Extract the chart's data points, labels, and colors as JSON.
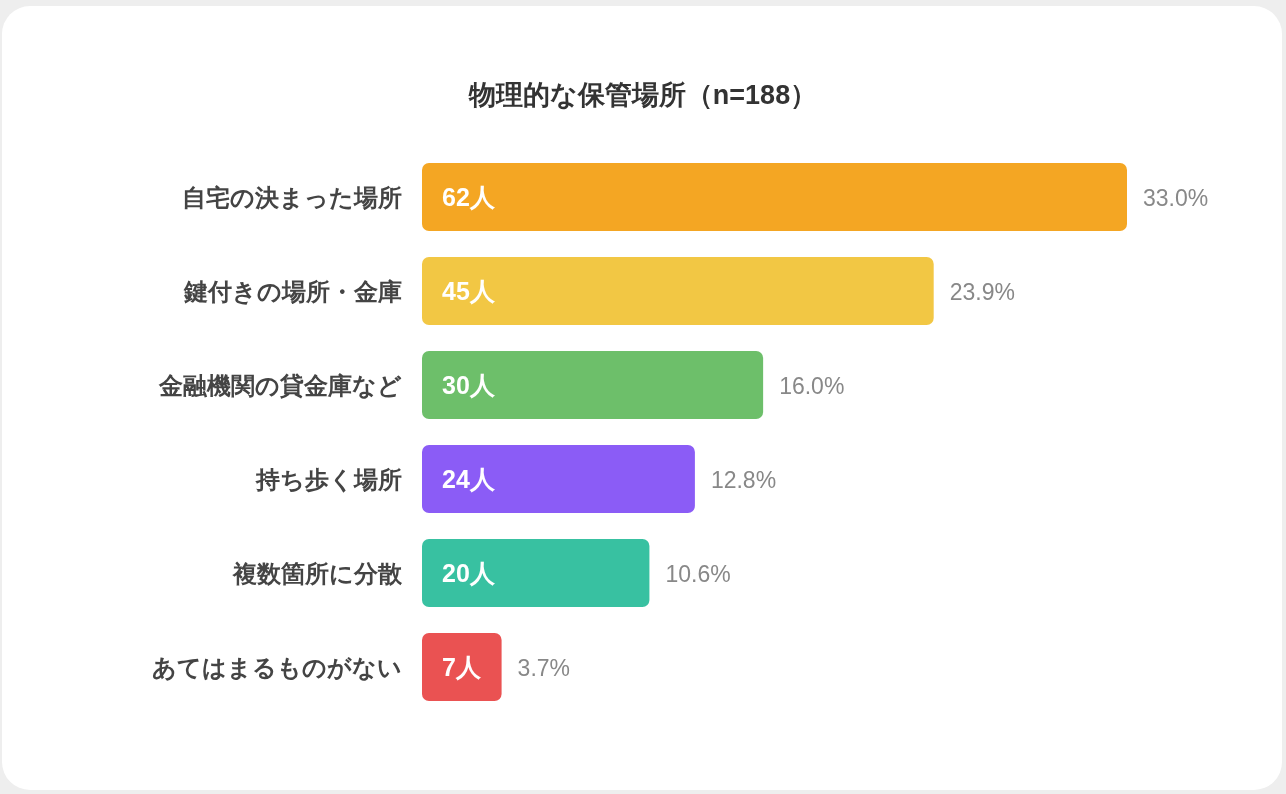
{
  "chart_data": {
    "type": "bar",
    "orientation": "horizontal",
    "title": "物理的な保管場所（n=188）",
    "categories": [
      "自宅の決まった場所",
      "鍵付きの場所・金庫",
      "金融機関の貸金庫など",
      "持ち歩く場所",
      "複数箇所に分散",
      "あてはまるものがない"
    ],
    "values": [
      62,
      45,
      30,
      24,
      20,
      7
    ],
    "colors": [
      "#f4a623",
      "#f2c744",
      "#6dbf6a",
      "#8b5cf6",
      "#38c1a1",
      "#ea5252"
    ],
    "value_labels": [
      "62人",
      "45人",
      "30人",
      "24人",
      "20人",
      "7人"
    ],
    "annotations": [
      {
        "text": "33.0%",
        "x": 62,
        "y": "自宅の決まった場所"
      },
      {
        "text": "23.9%",
        "x": 45,
        "y": "鍵付きの場所・金庫"
      },
      {
        "text": "16.0%",
        "x": 30,
        "y": "金融機関の貸金庫など"
      },
      {
        "text": "12.8%",
        "x": 24,
        "y": "持ち歩く場所"
      },
      {
        "text": "10.6%",
        "x": 20,
        "y": "複数箇所に分散"
      },
      {
        "text": "3.7%",
        "x": 7,
        "y": "あてはまるものがない"
      }
    ]
  }
}
